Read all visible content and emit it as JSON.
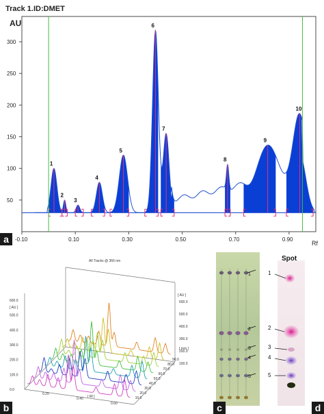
{
  "chart_data": [
    {
      "panel": "a",
      "type": "area",
      "title": "Track 1.ID:DMET",
      "ylabel": "AU",
      "xlabel": "Rf",
      "xlim": [
        -0.1,
        1.0
      ],
      "ylim": [
        0,
        340
      ],
      "x_ticks": [
        "-0.10",
        "0.10",
        "0.30",
        "0.50",
        "0.70",
        "0.90"
      ],
      "x_tick_values": [
        -0.1,
        0.1,
        0.3,
        0.5,
        0.7,
        0.9
      ],
      "y_ticks": [
        "50",
        "100",
        "150",
        "200",
        "250",
        "300"
      ],
      "y_tick_values": [
        50,
        100,
        150,
        200,
        250,
        300
      ],
      "baseline": 30,
      "start_line": 0.0,
      "front_line": 0.95,
      "peaks": [
        {
          "label": "1",
          "rf": 0.02,
          "height": 100,
          "start": 0.0,
          "end": 0.05
        },
        {
          "label": "2",
          "rf": 0.06,
          "height": 50,
          "start": 0.05,
          "end": 0.07
        },
        {
          "label": "3",
          "rf": 0.11,
          "height": 42,
          "start": 0.1,
          "end": 0.13
        },
        {
          "label": "4",
          "rf": 0.19,
          "height": 78,
          "start": 0.16,
          "end": 0.21
        },
        {
          "label": "5",
          "rf": 0.28,
          "height": 121,
          "start": 0.23,
          "end": 0.3
        },
        {
          "label": "6",
          "rf": 0.4,
          "height": 318,
          "start": 0.36,
          "end": 0.41
        },
        {
          "label": "7",
          "rf": 0.44,
          "height": 155,
          "start": 0.42,
          "end": 0.47
        },
        {
          "label": "8",
          "rf": 0.67,
          "height": 70,
          "start": 0.66,
          "end": 0.68
        },
        {
          "label": "9",
          "rf": 0.82,
          "height": 88,
          "start": 0.73,
          "end": 0.85
        },
        {
          "label": "10",
          "rf": 0.94,
          "height": 122,
          "start": 0.89,
          "end": 0.99
        }
      ],
      "tag": "a"
    },
    {
      "panel": "b",
      "type": "line",
      "title": "All Tracks @ 366 nm",
      "z_ticks": [
        "600.0",
        "500.0",
        "400.0",
        "300.0",
        "200.0",
        "100.0",
        "0.0"
      ],
      "z_unit": "[ AU ]",
      "z_tick_values": [
        600,
        500,
        400,
        300,
        200,
        100,
        0
      ],
      "x_ticks": [
        "0.20",
        "0.40",
        "0.60"
      ],
      "x_unit": "[ Rf ]",
      "depth_ticks": [
        "90.0",
        "80.0",
        "70.0",
        "60.0",
        "50.0",
        "40.0",
        "30.0",
        "20.0",
        "10.0"
      ],
      "depth_unit": "[ mm ]",
      "right_ticks": [
        "600.0",
        "500.0",
        "400.0",
        "300.0",
        "200.0",
        "100.0"
      ],
      "right_unit": "[ AU ]",
      "tracks": [
        {
          "color": "#d040c0"
        },
        {
          "color": "#c060e0"
        },
        {
          "color": "#2040c0"
        },
        {
          "color": "#20a0b0"
        },
        {
          "color": "#40c040"
        },
        {
          "color": "#a0d040"
        },
        {
          "color": "#d0c020"
        },
        {
          "color": "#e08020"
        }
      ],
      "tag": "b"
    },
    {
      "panel": "c",
      "type": "image",
      "spot_labels": [
        "1",
        "2",
        "3",
        "4",
        "5"
      ],
      "tag": "c"
    },
    {
      "panel": "d",
      "type": "image",
      "heading": "Spot",
      "spot_labels": [
        "1",
        "2",
        "3",
        "4",
        "5"
      ],
      "tag": "d"
    }
  ],
  "colors": {
    "fill": "#0a3fd6",
    "baseline": "#1f4fd0",
    "marker": "#e0307a",
    "frame": "#4a4a4a",
    "guide": "#3fbf3f"
  }
}
